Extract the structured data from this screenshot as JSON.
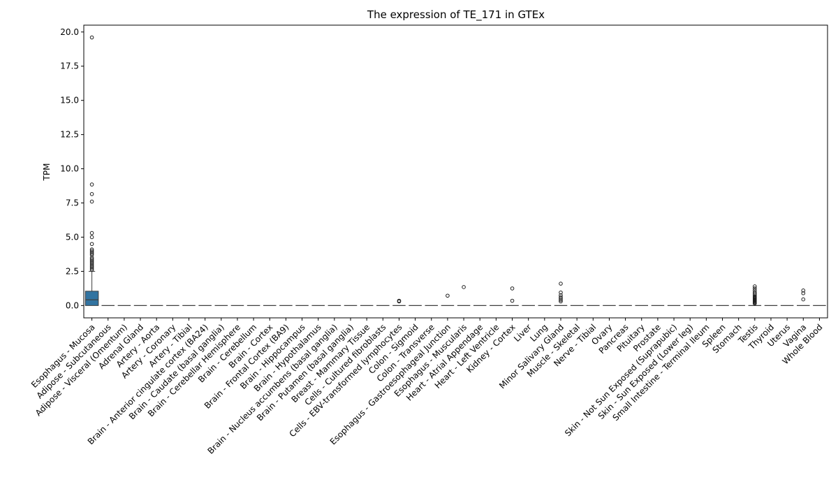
{
  "chart_data": {
    "type": "box",
    "title": "The expression of TE_171 in GTEx",
    "xlabel": "",
    "ylabel": "TPM",
    "ylim": [
      -0.9,
      20.5
    ],
    "yticks": [
      "0.0",
      "2.5",
      "5.0",
      "7.5",
      "10.0",
      "12.5",
      "15.0",
      "17.5",
      "20.0"
    ],
    "grid": false,
    "legend": "none",
    "box_color": "#3274a1",
    "categories": [
      "Esophagus - Mucosa",
      "Adipose - Subcutaneous",
      "Adipose - Visceral (Omentum)",
      "Adrenal Gland",
      "Artery - Aorta",
      "Artery - Coronary",
      "Artery - Tibial",
      "Brain - Anterior cingulate cortex (BA24)",
      "Brain - Caudate (basal ganglia)",
      "Brain - Cerebellar Hemisphere",
      "Brain - Cerebellum",
      "Brain - Cortex",
      "Brain - Frontal Cortex (BA9)",
      "Brain - Hippocampus",
      "Brain - Hypothalamus",
      "Brain - Nucleus accumbens (basal ganglia)",
      "Brain - Putamen (basal ganglia)",
      "Breast - Mammary Tissue",
      "Cells - Cultured fibroblasts",
      "Cells - EBV-transformed lymphocytes",
      "Colon - Sigmoid",
      "Colon - Transverse",
      "Esophagus - Gastroesophageal Junction",
      "Esophagus - Muscularis",
      "Heart - Atrial Appendage",
      "Heart - Left Ventricle",
      "Kidney - Cortex",
      "Liver",
      "Lung",
      "Minor Salivary Gland",
      "Muscle - Skeletal",
      "Nerve - Tibial",
      "Ovary",
      "Pancreas",
      "Pituitary",
      "Prostate",
      "Skin - Not Sun Exposed (Suprapubic)",
      "Skin - Sun Exposed (Lower leg)",
      "Small Intestine - Terminal Ileum",
      "Spleen",
      "Stomach",
      "Testis",
      "Thyroid",
      "Uterus",
      "Vagina",
      "Whole Blood"
    ],
    "boxes": [
      {
        "q1": 0.0,
        "median": 0.42,
        "q3": 1.05,
        "whisker_low": 0.0,
        "whisker_high": 2.5,
        "outliers": [
          19.6,
          8.85,
          8.15,
          7.6,
          5.3,
          5.0,
          4.5,
          4.1,
          4.0,
          3.9,
          3.8,
          3.7,
          3.5,
          3.4,
          3.3,
          3.2,
          3.1,
          3.0,
          2.9,
          2.8,
          2.7,
          2.6
        ]
      },
      {
        "q1": 0,
        "median": 0,
        "q3": 0,
        "whisker_low": 0,
        "whisker_high": 0,
        "outliers": []
      },
      {
        "q1": 0,
        "median": 0,
        "q3": 0,
        "whisker_low": 0,
        "whisker_high": 0,
        "outliers": []
      },
      {
        "q1": 0,
        "median": 0,
        "q3": 0,
        "whisker_low": 0,
        "whisker_high": 0,
        "outliers": []
      },
      {
        "q1": 0,
        "median": 0,
        "q3": 0,
        "whisker_low": 0,
        "whisker_high": 0,
        "outliers": []
      },
      {
        "q1": 0,
        "median": 0,
        "q3": 0,
        "whisker_low": 0,
        "whisker_high": 0,
        "outliers": []
      },
      {
        "q1": 0,
        "median": 0,
        "q3": 0,
        "whisker_low": 0,
        "whisker_high": 0,
        "outliers": []
      },
      {
        "q1": 0,
        "median": 0,
        "q3": 0,
        "whisker_low": 0,
        "whisker_high": 0,
        "outliers": []
      },
      {
        "q1": 0,
        "median": 0,
        "q3": 0,
        "whisker_low": 0,
        "whisker_high": 0,
        "outliers": []
      },
      {
        "q1": 0,
        "median": 0,
        "q3": 0,
        "whisker_low": 0,
        "whisker_high": 0,
        "outliers": []
      },
      {
        "q1": 0,
        "median": 0,
        "q3": 0,
        "whisker_low": 0,
        "whisker_high": 0,
        "outliers": []
      },
      {
        "q1": 0,
        "median": 0,
        "q3": 0,
        "whisker_low": 0,
        "whisker_high": 0,
        "outliers": []
      },
      {
        "q1": 0,
        "median": 0,
        "q3": 0,
        "whisker_low": 0,
        "whisker_high": 0,
        "outliers": []
      },
      {
        "q1": 0,
        "median": 0,
        "q3": 0,
        "whisker_low": 0,
        "whisker_high": 0,
        "outliers": []
      },
      {
        "q1": 0,
        "median": 0,
        "q3": 0,
        "whisker_low": 0,
        "whisker_high": 0,
        "outliers": []
      },
      {
        "q1": 0,
        "median": 0,
        "q3": 0,
        "whisker_low": 0,
        "whisker_high": 0,
        "outliers": []
      },
      {
        "q1": 0,
        "median": 0,
        "q3": 0,
        "whisker_low": 0,
        "whisker_high": 0,
        "outliers": []
      },
      {
        "q1": 0,
        "median": 0,
        "q3": 0,
        "whisker_low": 0,
        "whisker_high": 0,
        "outliers": []
      },
      {
        "q1": 0,
        "median": 0,
        "q3": 0,
        "whisker_low": 0,
        "whisker_high": 0,
        "outliers": []
      },
      {
        "q1": 0,
        "median": 0,
        "q3": 0,
        "whisker_low": 0,
        "whisker_high": 0,
        "outliers": [
          0.35,
          0.3
        ]
      },
      {
        "q1": 0,
        "median": 0,
        "q3": 0,
        "whisker_low": 0,
        "whisker_high": 0,
        "outliers": []
      },
      {
        "q1": 0,
        "median": 0,
        "q3": 0,
        "whisker_low": 0,
        "whisker_high": 0,
        "outliers": []
      },
      {
        "q1": 0,
        "median": 0,
        "q3": 0,
        "whisker_low": 0,
        "whisker_high": 0,
        "outliers": [
          0.72
        ]
      },
      {
        "q1": 0,
        "median": 0,
        "q3": 0,
        "whisker_low": 0,
        "whisker_high": 0,
        "outliers": [
          1.35
        ]
      },
      {
        "q1": 0,
        "median": 0,
        "q3": 0,
        "whisker_low": 0,
        "whisker_high": 0,
        "outliers": []
      },
      {
        "q1": 0,
        "median": 0,
        "q3": 0,
        "whisker_low": 0,
        "whisker_high": 0,
        "outliers": []
      },
      {
        "q1": 0,
        "median": 0,
        "q3": 0,
        "whisker_low": 0,
        "whisker_high": 0,
        "outliers": [
          1.25,
          0.35
        ]
      },
      {
        "q1": 0,
        "median": 0,
        "q3": 0,
        "whisker_low": 0,
        "whisker_high": 0,
        "outliers": []
      },
      {
        "q1": 0,
        "median": 0,
        "q3": 0,
        "whisker_low": 0,
        "whisker_high": 0,
        "outliers": []
      },
      {
        "q1": 0,
        "median": 0,
        "q3": 0,
        "whisker_low": 0,
        "whisker_high": 0,
        "outliers": [
          1.6,
          0.95,
          0.75,
          0.6,
          0.5,
          0.4,
          0.3
        ]
      },
      {
        "q1": 0,
        "median": 0,
        "q3": 0,
        "whisker_low": 0,
        "whisker_high": 0,
        "outliers": []
      },
      {
        "q1": 0,
        "median": 0,
        "q3": 0,
        "whisker_low": 0,
        "whisker_high": 0,
        "outliers": []
      },
      {
        "q1": 0,
        "median": 0,
        "q3": 0,
        "whisker_low": 0,
        "whisker_high": 0,
        "outliers": []
      },
      {
        "q1": 0,
        "median": 0,
        "q3": 0,
        "whisker_low": 0,
        "whisker_high": 0,
        "outliers": []
      },
      {
        "q1": 0,
        "median": 0,
        "q3": 0,
        "whisker_low": 0,
        "whisker_high": 0,
        "outliers": []
      },
      {
        "q1": 0,
        "median": 0,
        "q3": 0,
        "whisker_low": 0,
        "whisker_high": 0,
        "outliers": []
      },
      {
        "q1": 0,
        "median": 0,
        "q3": 0,
        "whisker_low": 0,
        "whisker_high": 0,
        "outliers": []
      },
      {
        "q1": 0,
        "median": 0,
        "q3": 0,
        "whisker_low": 0,
        "whisker_high": 0,
        "outliers": []
      },
      {
        "q1": 0,
        "median": 0,
        "q3": 0,
        "whisker_low": 0,
        "whisker_high": 0,
        "outliers": []
      },
      {
        "q1": 0,
        "median": 0,
        "q3": 0,
        "whisker_low": 0,
        "whisker_high": 0,
        "outliers": []
      },
      {
        "q1": 0,
        "median": 0,
        "q3": 0,
        "whisker_low": 0,
        "whisker_high": 0,
        "outliers": []
      },
      {
        "q1": 0,
        "median": 0,
        "q3": 0,
        "whisker_low": 0,
        "whisker_high": 0,
        "outliers": [
          1.4,
          1.25,
          1.1,
          0.95,
          0.85,
          0.75,
          0.65,
          0.6,
          0.55,
          0.5,
          0.45,
          0.4,
          0.35,
          0.3,
          0.25,
          0.2,
          0.15
        ]
      },
      {
        "q1": 0,
        "median": 0,
        "q3": 0,
        "whisker_low": 0,
        "whisker_high": 0,
        "outliers": []
      },
      {
        "q1": 0,
        "median": 0,
        "q3": 0,
        "whisker_low": 0,
        "whisker_high": 0,
        "outliers": []
      },
      {
        "q1": 0,
        "median": 0,
        "q3": 0,
        "whisker_low": 0,
        "whisker_high": 0,
        "outliers": [
          1.1,
          0.9,
          0.45
        ]
      },
      {
        "q1": 0,
        "median": 0,
        "q3": 0,
        "whisker_low": 0,
        "whisker_high": 0,
        "outliers": []
      }
    ]
  }
}
